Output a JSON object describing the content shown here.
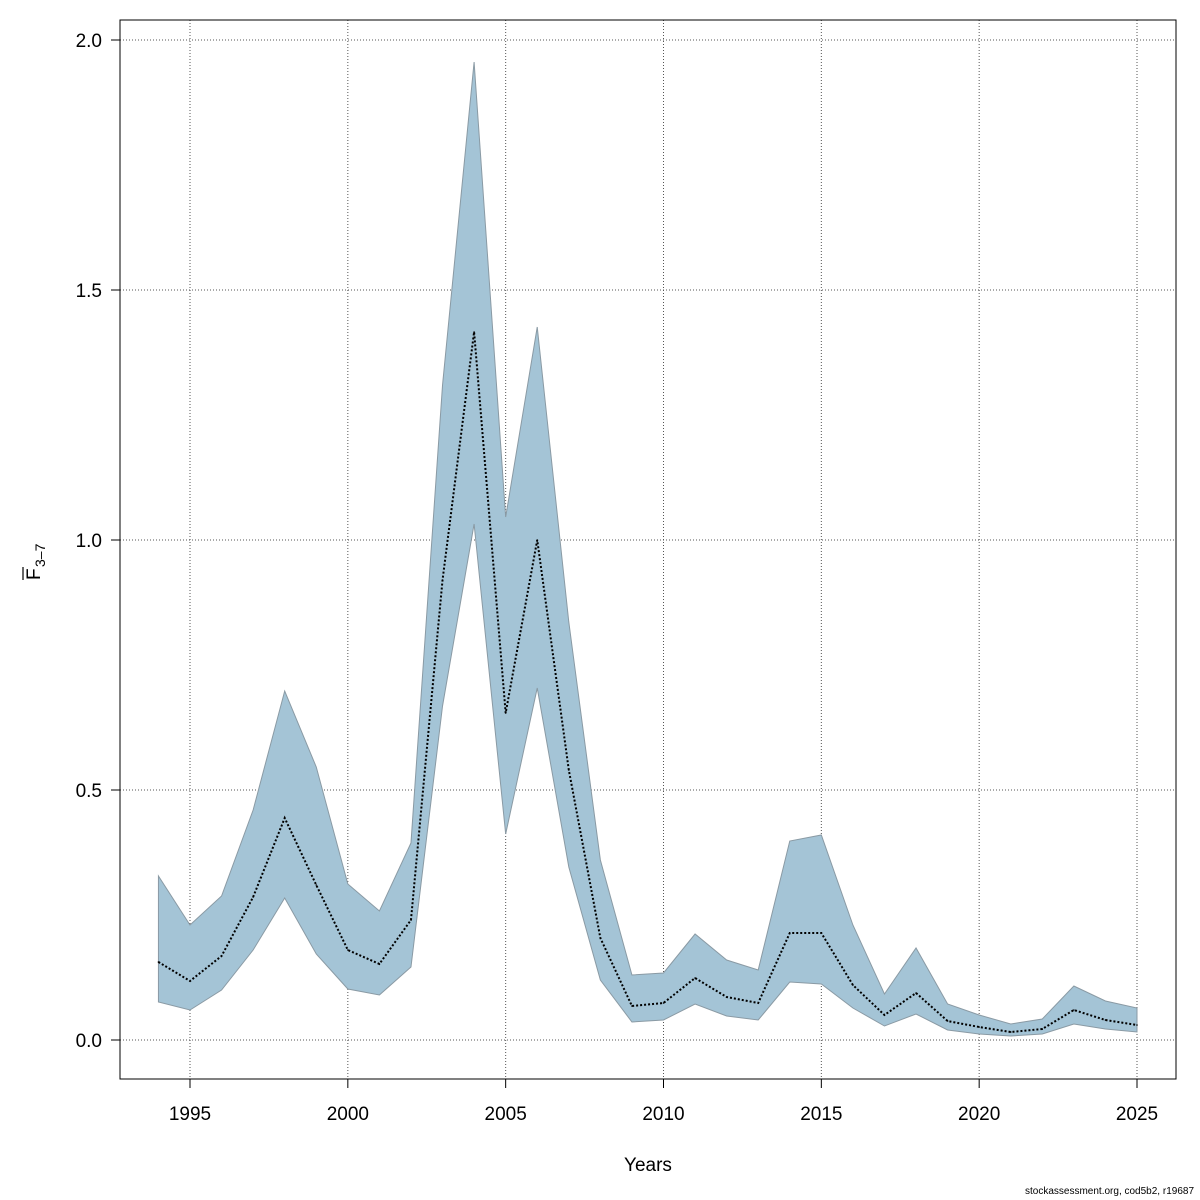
{
  "chart_data": {
    "type": "area",
    "title": "",
    "xlabel": "Years",
    "ylabel_main": "F",
    "ylabel_sub": "3–7",
    "xlim": [
      1992.2,
      2026.2
    ],
    "ylim": [
      -0.078,
      2.04
    ],
    "grid": true,
    "xticks": [
      1995,
      2000,
      2005,
      2010,
      2015,
      2020,
      2025
    ],
    "yticks": [
      "0.0",
      "0.5",
      "1.0",
      "1.5",
      "2.0"
    ],
    "ytick_values": [
      0,
      0.5,
      1.0,
      1.5,
      2.0
    ],
    "x": [
      1994,
      1995,
      1996,
      1997,
      1998,
      1999,
      2000,
      2001,
      2002,
      2003,
      2004,
      2005,
      2006,
      2007,
      2008,
      2009,
      2010,
      2011,
      2012,
      2013,
      2014,
      2015,
      2016,
      2017,
      2018,
      2019,
      2020,
      2021,
      2022,
      2023,
      2024,
      2025
    ],
    "series": [
      {
        "name": "estimate",
        "values": [
          0.156,
          0.118,
          0.168,
          0.286,
          0.444,
          0.31,
          0.18,
          0.152,
          0.24,
          0.92,
          1.416,
          0.654,
          1.0,
          0.54,
          0.204,
          0.068,
          0.074,
          0.124,
          0.086,
          0.074,
          0.214,
          0.214,
          0.11,
          0.05,
          0.094,
          0.038,
          0.026,
          0.016,
          0.022,
          0.06,
          0.04,
          0.03
        ]
      },
      {
        "name": "upper",
        "values": [
          0.328,
          0.23,
          0.288,
          0.46,
          0.698,
          0.546,
          0.312,
          0.258,
          0.394,
          1.31,
          1.956,
          1.046,
          1.426,
          0.836,
          0.36,
          0.13,
          0.134,
          0.212,
          0.16,
          0.14,
          0.398,
          0.41,
          0.23,
          0.092,
          0.184,
          0.072,
          0.05,
          0.032,
          0.042,
          0.108,
          0.078,
          0.064
        ]
      },
      {
        "name": "lower",
        "values": [
          0.076,
          0.06,
          0.1,
          0.18,
          0.284,
          0.172,
          0.102,
          0.09,
          0.146,
          0.668,
          1.032,
          0.412,
          0.704,
          0.346,
          0.12,
          0.036,
          0.04,
          0.072,
          0.048,
          0.04,
          0.116,
          0.112,
          0.064,
          0.028,
          0.052,
          0.02,
          0.012,
          0.008,
          0.012,
          0.032,
          0.022,
          0.016
        ]
      }
    ],
    "colors": {
      "band": "#a4c4d6",
      "band_edge": "#8a9aa4",
      "line": "#000000",
      "grid": "#555555"
    }
  },
  "footer": "stockassessment.org, cod5b2, r19687"
}
